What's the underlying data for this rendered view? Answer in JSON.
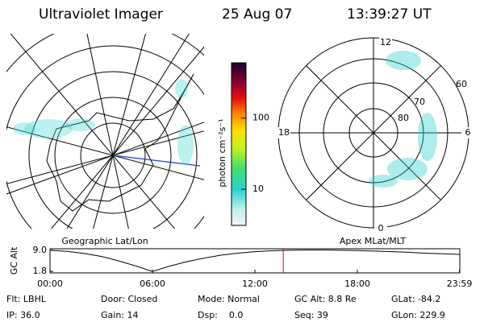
{
  "header": {
    "title": "Ultraviolet Imager",
    "date": "25 Aug 07",
    "time": "13:39:27 UT"
  },
  "colorbar": {
    "label": "photon cm⁻²s⁻¹",
    "scale": "log",
    "lim": [
      3.1,
      600
    ],
    "ticks": [
      10,
      100
    ]
  },
  "left_panel": {
    "label": "Geographic Lat/Lon"
  },
  "right_panel": {
    "label": "Apex MLat/MLT",
    "mlt_labels": [
      "12",
      "18",
      "6",
      "0"
    ],
    "lat_labels": [
      "60",
      "70",
      "80"
    ]
  },
  "altitude_plot": {
    "ylabel": "GC Alt",
    "yticks": [
      {
        "value": 9.0,
        "label": "9.0"
      },
      {
        "value": 1.8,
        "label": "1.8"
      }
    ],
    "ylim": [
      1.3,
      9.5
    ],
    "xticks": [
      {
        "value": 0,
        "label": "00:00"
      },
      {
        "value": 6,
        "label": "06:00"
      },
      {
        "value": 12,
        "label": "12:00"
      },
      {
        "value": 18,
        "label": "18:00"
      },
      {
        "value": 23.98,
        "label": "23:59"
      }
    ],
    "xlim": [
      0,
      24
    ],
    "x": [
      0,
      1,
      2,
      3,
      4,
      5,
      6,
      7,
      8,
      9,
      10,
      11,
      12,
      13,
      14,
      15,
      16,
      17,
      18,
      19,
      20,
      21,
      22,
      23,
      23.98
    ],
    "values": [
      9.0,
      8.6,
      7.9,
      6.9,
      5.4,
      3.7,
      1.8,
      3.6,
      5.1,
      6.3,
      7.3,
      8.0,
      8.5,
      8.8,
      9.0,
      9.1,
      9.1,
      9.0,
      8.9,
      8.7,
      8.5,
      8.3,
      8.0,
      7.8,
      7.6
    ],
    "current_hour": 13.66
  },
  "footer": {
    "rows": [
      [
        "Flt: LBHL",
        "Door: Closed",
        "Mode: Normal",
        "GC Alt: 8.8 Re",
        "GLat: -84.2"
      ],
      [
        "IP: 36.0",
        "Gain: 14",
        "Dsp:    0.0",
        "Seq: 39",
        "GLon: 229.9"
      ]
    ]
  }
}
